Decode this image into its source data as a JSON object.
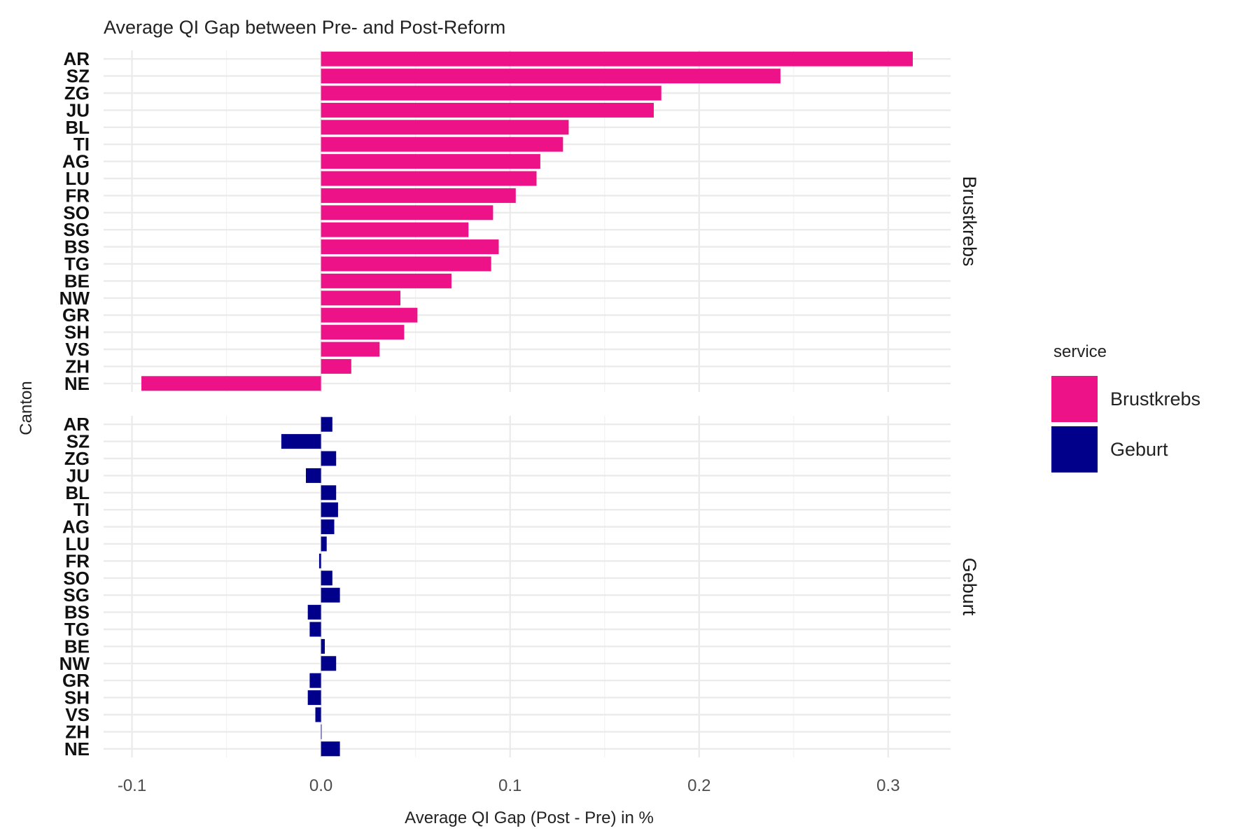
{
  "chart_data": {
    "type": "bar",
    "orientation": "horizontal",
    "title": "Average QI Gap between Pre- and Post-Reform",
    "xlabel": "Average QI Gap (Post - Pre) in %",
    "ylabel": "Canton",
    "xlim": [
      -0.115,
      0.333
    ],
    "x_ticks": [
      -0.1,
      0.0,
      0.1,
      0.2,
      0.3
    ],
    "x_tick_labels": [
      "-0.1",
      "0.0",
      "0.1",
      "0.2",
      "0.3"
    ],
    "grid": true,
    "legend": {
      "title": "service",
      "placement": "right",
      "entries": [
        {
          "label": "Brustkrebs",
          "color": "#EE1289"
        },
        {
          "label": "Geburt",
          "color": "#00008B"
        }
      ]
    },
    "categories": [
      "AR",
      "SZ",
      "ZG",
      "JU",
      "BL",
      "TI",
      "AG",
      "LU",
      "FR",
      "SO",
      "SG",
      "BS",
      "TG",
      "BE",
      "NW",
      "GR",
      "SH",
      "VS",
      "ZH",
      "NE"
    ],
    "panels": [
      {
        "strip_label": "Brustkrebs",
        "color": "#EE1289",
        "values": [
          0.313,
          0.243,
          0.18,
          0.176,
          0.131,
          0.128,
          0.116,
          0.114,
          0.103,
          0.091,
          0.078,
          0.094,
          0.09,
          0.069,
          0.042,
          0.051,
          0.044,
          0.031,
          0.016,
          -0.095
        ]
      },
      {
        "strip_label": "Geburt",
        "color": "#00008B",
        "values": [
          0.006,
          -0.021,
          0.008,
          -0.008,
          0.008,
          0.009,
          0.007,
          0.003,
          -0.001,
          0.006,
          0.01,
          -0.007,
          -0.006,
          0.002,
          0.008,
          -0.006,
          -0.007,
          -0.003,
          0.0,
          0.01
        ]
      }
    ]
  }
}
